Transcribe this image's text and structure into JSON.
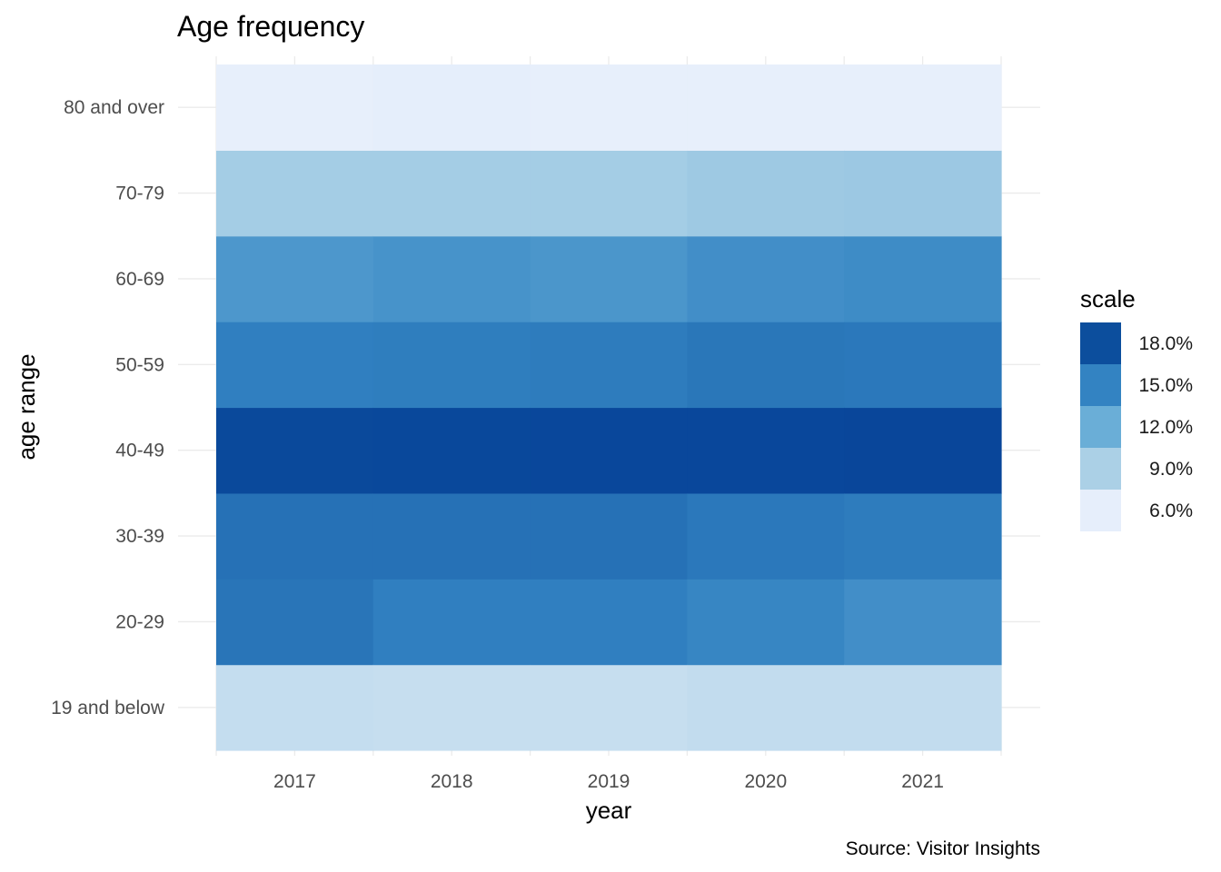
{
  "chart_data": {
    "type": "heatmap",
    "title": "Age frequency",
    "xlabel": "year",
    "ylabel": "age range",
    "caption": "Source: Visitor Insights",
    "x": [
      "2017",
      "2018",
      "2019",
      "2020",
      "2021"
    ],
    "y": [
      "19 and below",
      "20-29",
      "30-39",
      "40-49",
      "50-59",
      "60-69",
      "70-79",
      "80 and over"
    ],
    "values": [
      [
        7.6,
        15.8,
        16.0,
        19.2,
        15.2,
        13.6,
        9.3,
        5.6
      ],
      [
        7.5,
        15.2,
        16.0,
        19.4,
        15.3,
        13.9,
        9.3,
        5.7
      ],
      [
        7.5,
        15.2,
        16.0,
        19.6,
        15.4,
        13.7,
        9.3,
        5.6
      ],
      [
        7.7,
        14.8,
        15.6,
        19.6,
        15.7,
        14.2,
        9.6,
        5.6
      ],
      [
        7.7,
        14.2,
        15.4,
        19.7,
        15.6,
        14.4,
        9.7,
        5.6
      ]
    ],
    "legend": {
      "title": "scale",
      "position": "right",
      "ticks": [
        {
          "label": "18.0%",
          "value": 18,
          "color": "#0c4e9d"
        },
        {
          "label": "15.0%",
          "value": 15,
          "color": "#3383c2"
        },
        {
          "label": "12.0%",
          "value": 12,
          "color": "#6aaed7"
        },
        {
          "label": "9.0%",
          "value": 9,
          "color": "#abd0e6"
        },
        {
          "label": "6.0%",
          "value": 6,
          "color": "#e6eefb"
        }
      ]
    },
    "color_scale": {
      "low": "#e6eefb",
      "high": "#08479a",
      "stops": [
        {
          "v": 5.5,
          "c": "#e9f0fc"
        },
        {
          "v": 9.0,
          "c": "#abd0e6"
        },
        {
          "v": 12.0,
          "c": "#6aaed7"
        },
        {
          "v": 15.0,
          "c": "#3383c2"
        },
        {
          "v": 18.0,
          "c": "#0c4e9d"
        },
        {
          "v": 20.0,
          "c": "#08459a"
        }
      ]
    },
    "grid": true
  }
}
